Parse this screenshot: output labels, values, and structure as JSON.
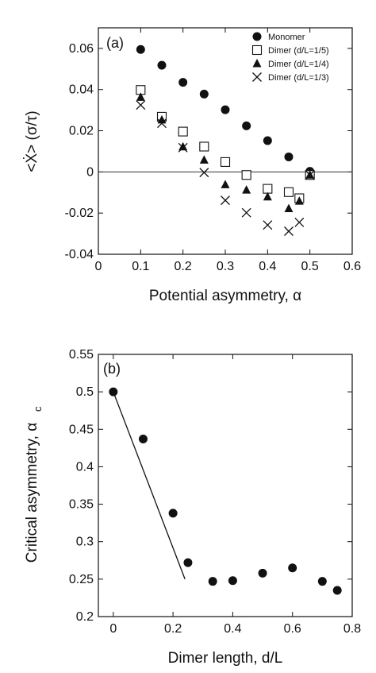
{
  "chart_data": [
    {
      "type": "scatter",
      "panel_label": "(a)",
      "xlabel": "Potential asymmetry, α",
      "ylabel": "<Ẋ> (σ/τ)",
      "xlim": [
        0,
        0.6
      ],
      "ylim": [
        -0.04,
        0.07
      ],
      "xticks": [
        "0",
        "0.1",
        "0.2",
        "0.3",
        "0.4",
        "0.5",
        "0.6"
      ],
      "yticks": [
        "-0.04",
        "-0.02",
        "0",
        "0.02",
        "0.04",
        "0.06"
      ],
      "zero_line": true,
      "grid": false,
      "legend_position": "top-right",
      "series": [
        {
          "name": "Monomer",
          "marker": "filled-circle",
          "x": [
            0.1,
            0.15,
            0.2,
            0.25,
            0.3,
            0.35,
            0.4,
            0.45,
            0.5
          ],
          "y": [
            0.0595,
            0.0518,
            0.0435,
            0.0378,
            0.0302,
            0.0224,
            0.0152,
            0.0073,
            0.0003
          ]
        },
        {
          "name": "Dimer (d/L=1/5)",
          "marker": "open-square",
          "x": [
            0.1,
            0.15,
            0.2,
            0.25,
            0.3,
            0.35,
            0.4,
            0.45,
            0.475,
            0.5
          ],
          "y": [
            0.0398,
            0.0268,
            0.0196,
            0.0123,
            0.0048,
            -0.0015,
            -0.0082,
            -0.0098,
            -0.0128,
            -0.0015
          ]
        },
        {
          "name": "Dimer (d/L=1/4)",
          "marker": "filled-triangle",
          "x": [
            0.1,
            0.15,
            0.2,
            0.25,
            0.3,
            0.35,
            0.4,
            0.45,
            0.475,
            0.5
          ],
          "y": [
            0.0363,
            0.0253,
            0.0122,
            0.0058,
            -0.0062,
            -0.0088,
            -0.0121,
            -0.0178,
            -0.0142,
            -0.0015
          ]
        },
        {
          "name": "Dimer (d/L=1/3)",
          "marker": "cross",
          "x": [
            0.1,
            0.15,
            0.2,
            0.25,
            0.3,
            0.35,
            0.4,
            0.45,
            0.475,
            0.5
          ],
          "y": [
            0.0325,
            0.0236,
            0.0118,
            -0.0003,
            -0.0138,
            -0.0198,
            -0.0258,
            -0.0288,
            -0.0245,
            -0.0015
          ]
        }
      ]
    },
    {
      "type": "scatter",
      "panel_label": "(b)",
      "xlabel": "Dimer length, d/L",
      "ylabel": "Critical asymmetry, α",
      "ylabel_subscript": "c",
      "xlim": [
        -0.05,
        0.8
      ],
      "ylim": [
        0.2,
        0.55
      ],
      "xticks": [
        "0",
        "0.2",
        "0.4",
        "0.6",
        "0.8"
      ],
      "yticks": [
        "0.2",
        "0.25",
        "0.3",
        "0.35",
        "0.4",
        "0.45",
        "0.5",
        "0.55"
      ],
      "grid": false,
      "series": [
        {
          "marker": "filled-circle",
          "x": [
            0,
            0.1,
            0.2,
            0.25,
            0.333,
            0.4,
            0.5,
            0.6,
            0.7,
            0.75
          ],
          "y": [
            0.5,
            0.437,
            0.338,
            0.272,
            0.247,
            0.248,
            0.258,
            0.265,
            0.247,
            0.235
          ]
        }
      ],
      "fit_line": {
        "x": [
          0,
          0.24
        ],
        "y": [
          0.5,
          0.25
        ]
      }
    }
  ]
}
